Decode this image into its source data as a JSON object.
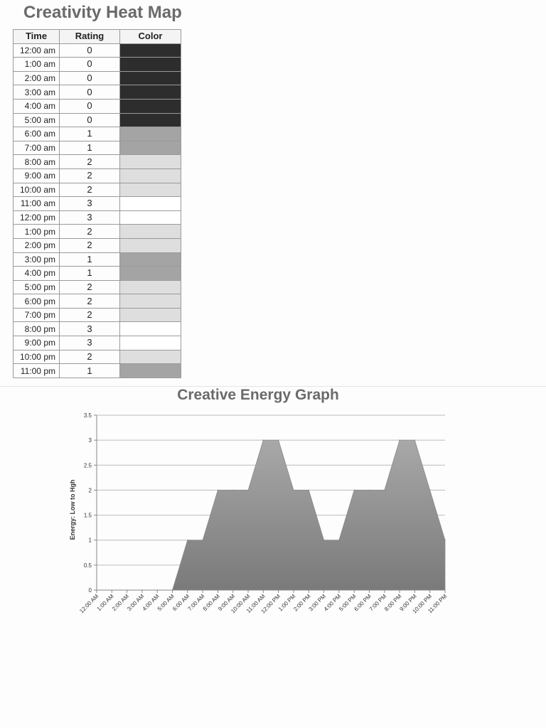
{
  "heat_map": {
    "title": "Creativity Heat Map",
    "columns": [
      "Time",
      "Rating",
      "Color"
    ],
    "rows": [
      {
        "time": "12:00 am",
        "rating": "0"
      },
      {
        "time": "1:00 am",
        "rating": "0"
      },
      {
        "time": "2:00 am",
        "rating": "0"
      },
      {
        "time": "3:00 am",
        "rating": "0"
      },
      {
        "time": "4:00 am",
        "rating": "0"
      },
      {
        "time": "5:00 am",
        "rating": "0"
      },
      {
        "time": "6:00 am",
        "rating": "1"
      },
      {
        "time": "7:00 am",
        "rating": "1"
      },
      {
        "time": "8:00 am",
        "rating": "2"
      },
      {
        "time": "9:00 am",
        "rating": "2"
      },
      {
        "time": "10:00 am",
        "rating": "2"
      },
      {
        "time": "11:00 am",
        "rating": "3"
      },
      {
        "time": "12:00 pm",
        "rating": "3"
      },
      {
        "time": "1:00 pm",
        "rating": "2"
      },
      {
        "time": "2:00 pm",
        "rating": "2"
      },
      {
        "time": "3:00 pm",
        "rating": "1"
      },
      {
        "time": "4:00 pm",
        "rating": "1"
      },
      {
        "time": "5:00 pm",
        "rating": "2"
      },
      {
        "time": "6:00 pm",
        "rating": "2"
      },
      {
        "time": "7:00 pm",
        "rating": "2"
      },
      {
        "time": "8:00 pm",
        "rating": "3"
      },
      {
        "time": "9:00 pm",
        "rating": "3"
      },
      {
        "time": "10:00 pm",
        "rating": "2"
      },
      {
        "time": "11:00 pm",
        "rating": "1"
      }
    ],
    "rating_colors": {
      "0": "#2d2d2d",
      "1": "#a4a4a4",
      "2": "#dedede",
      "3": "#ffffff"
    }
  },
  "chart_data": [
    {
      "type": "table",
      "title": "Creativity Heat Map",
      "columns": [
        "Time",
        "Rating",
        "Color"
      ],
      "categories": [
        "12:00 am",
        "1:00 am",
        "2:00 am",
        "3:00 am",
        "4:00 am",
        "5:00 am",
        "6:00 am",
        "7:00 am",
        "8:00 am",
        "9:00 am",
        "10:00 am",
        "11:00 am",
        "12:00 pm",
        "1:00 pm",
        "2:00 pm",
        "3:00 pm",
        "4:00 pm",
        "5:00 pm",
        "6:00 pm",
        "7:00 pm",
        "8:00 pm",
        "9:00 pm",
        "10:00 pm",
        "11:00 pm"
      ],
      "values": [
        0,
        0,
        0,
        0,
        0,
        0,
        1,
        1,
        2,
        2,
        2,
        3,
        3,
        2,
        2,
        1,
        1,
        2,
        2,
        2,
        3,
        3,
        2,
        1
      ]
    },
    {
      "type": "area",
      "title": "Creative Energy Graph",
      "xlabel": "",
      "ylabel": "Energy: Low to Hgh",
      "categories": [
        "12:00 AM",
        "1:00 AM",
        "2:00 AM",
        "3:00 AM",
        "4:00 AM",
        "5:00 AM",
        "6:00 AM",
        "7:00 AM",
        "8:00 AM",
        "9:00 AM",
        "10:00 AM",
        "11:00 AM",
        "12:00 PM",
        "1:00 PM",
        "2:00 PM",
        "3:00 PM",
        "4:00 PM",
        "5:00 PM",
        "6:00 PM",
        "7:00 PM",
        "8:00 PM",
        "9:00 PM",
        "10:00 PM",
        "11:00 PM"
      ],
      "values": [
        0,
        0,
        0,
        0,
        0,
        0,
        1,
        1,
        2,
        2,
        2,
        3,
        3,
        2,
        2,
        1,
        1,
        2,
        2,
        2,
        3,
        3,
        2,
        1
      ],
      "ylim": [
        0,
        3.5
      ],
      "yticks": [
        "0",
        "0.5",
        "1",
        "1.5",
        "2",
        "2.5",
        "3",
        "3.5"
      ],
      "grid": true,
      "legend": "none",
      "fill_color_top": "#a8a8a8",
      "fill_color_bottom": "#7a7a7a"
    }
  ]
}
